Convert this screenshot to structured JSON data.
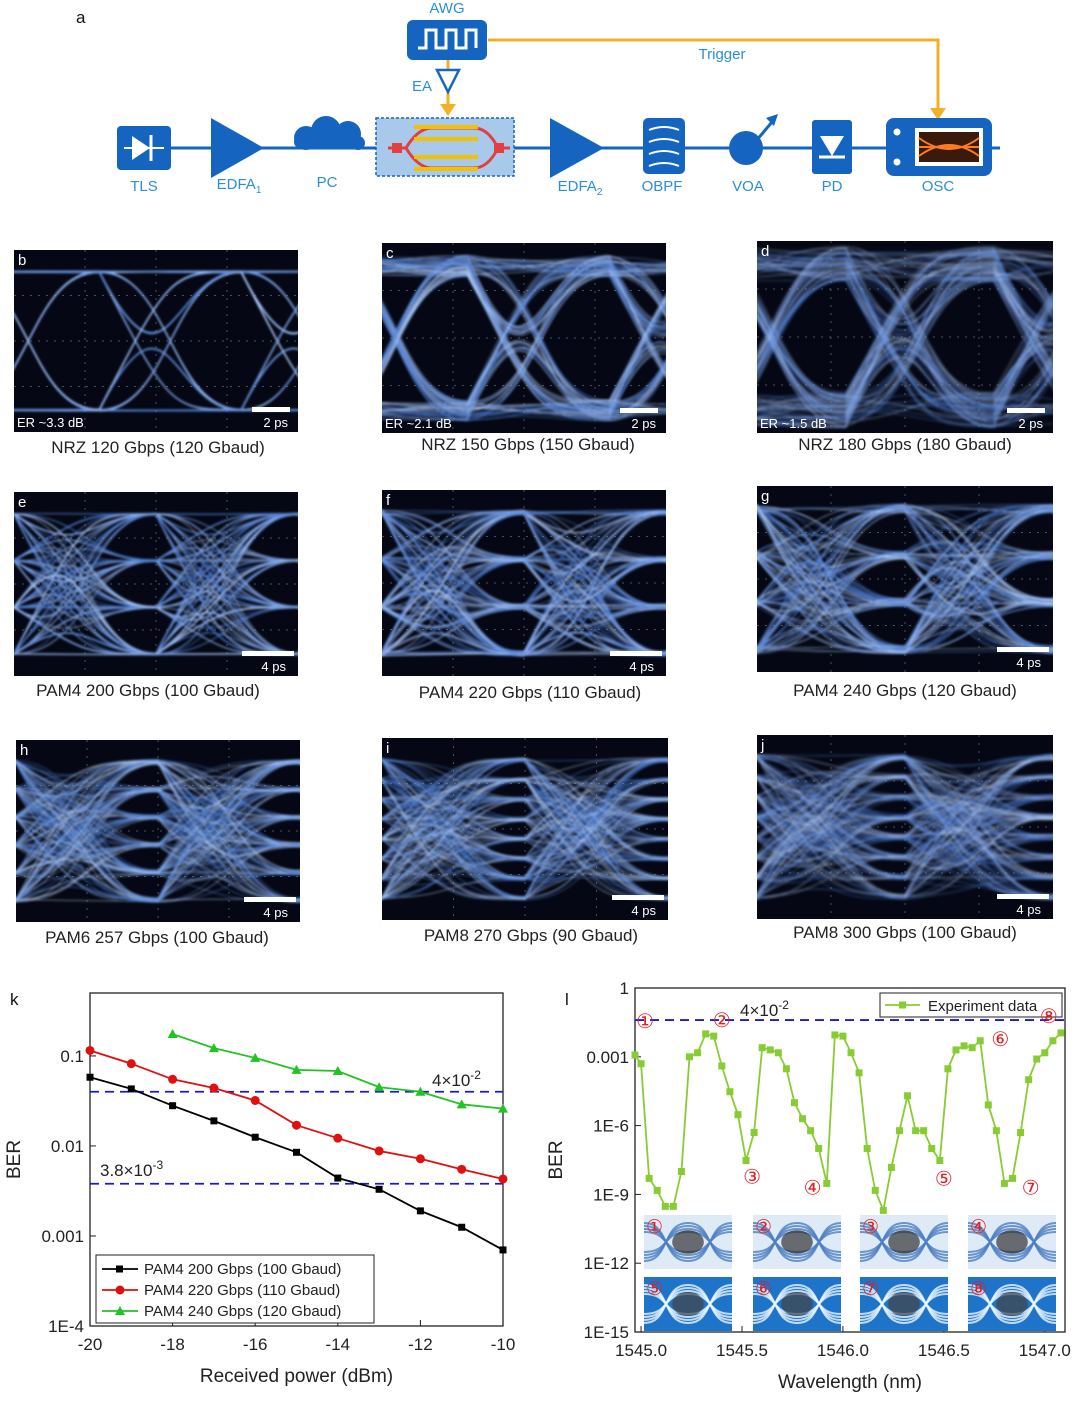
{
  "figure": {
    "schematic": {
      "panel": "a",
      "components": {
        "awg": "AWG",
        "ea": "EA",
        "trigger": "Trigger",
        "tls": "TLS",
        "edfa1": "EDFA",
        "edfa1_sub": "1",
        "pc": "PC",
        "edfa2": "EDFA",
        "edfa2_sub": "2",
        "obpf": "OBPF",
        "voa": "VOA",
        "pd": "PD",
        "osc": "OSC"
      },
      "colors": {
        "device": "#1565c0",
        "signal": "#f2b025",
        "label": "#2a8fd8"
      }
    },
    "eyes": [
      {
        "panel": "b",
        "er": "ER ~3.3 dB",
        "scale": "2 ps",
        "caption": "NRZ 120 Gbps (120 Gbaud)",
        "levels": 2,
        "quality": 1.0
      },
      {
        "panel": "c",
        "er": "ER ~2.1 dB",
        "scale": "2 ps",
        "caption": "NRZ 150 Gbps (150 Gbaud)",
        "levels": 2,
        "quality": 0.7
      },
      {
        "panel": "d",
        "er": "ER ~1.5 dB",
        "scale": "2 ps",
        "caption": "NRZ 180 Gbps (180 Gbaud)",
        "levels": 2,
        "quality": 0.5
      },
      {
        "panel": "e",
        "er": "",
        "scale": "4 ps",
        "caption": "PAM4 200 Gbps (100 Gbaud)",
        "levels": 4,
        "quality": 1.0
      },
      {
        "panel": "f",
        "er": "",
        "scale": "4 ps",
        "caption": "PAM4 220 Gbps (110 Gbaud)",
        "levels": 4,
        "quality": 0.85
      },
      {
        "panel": "g",
        "er": "",
        "scale": "4 ps",
        "caption": "PAM4 240 Gbps (120 Gbaud)",
        "levels": 4,
        "quality": 0.7
      },
      {
        "panel": "h",
        "er": "",
        "scale": "4 ps",
        "caption": "PAM6 257 Gbps (100 Gbaud)",
        "levels": 6,
        "quality": 0.8
      },
      {
        "panel": "i",
        "er": "",
        "scale": "4 ps",
        "caption": "PAM8 270 Gbps (90 Gbaud)",
        "levels": 8,
        "quality": 0.8
      },
      {
        "panel": "j",
        "er": "",
        "scale": "4 ps",
        "caption": "PAM8 300 Gbps (100 Gbaud)",
        "levels": 8,
        "quality": 0.65
      }
    ]
  },
  "chart_data": [
    {
      "panel": "k",
      "type": "line",
      "xlabel": "Received power (dBm)",
      "ylabel": "BER",
      "xlim": [
        -20,
        -10
      ],
      "ylim": [
        0.0001,
        0.5
      ],
      "log_y": true,
      "x_ticks": [
        -20,
        -18,
        -16,
        -14,
        -12,
        -10
      ],
      "y_ticks": [
        0.0001,
        0.001,
        0.01,
        0.1
      ],
      "y_tick_labels": [
        "1E-4",
        "0.001",
        "0.01",
        "0.1"
      ],
      "series": [
        {
          "name": "PAM4 200 Gbps (100 Gbaud)",
          "color": "#000000",
          "marker": "square",
          "x": [
            -20,
            -19,
            -18,
            -17,
            -16,
            -15,
            -14,
            -13,
            -12,
            -11,
            -10
          ],
          "y": [
            0.058,
            0.043,
            0.028,
            0.019,
            0.0125,
            0.0085,
            0.0044,
            0.0033,
            0.0019,
            0.00125,
            0.0007
          ]
        },
        {
          "name": "PAM4 220 Gbps (110 Gbaud)",
          "color": "#e01010",
          "marker": "circle",
          "x": [
            -20,
            -19,
            -18,
            -17,
            -16,
            -15,
            -14,
            -13,
            -12,
            -11,
            -10
          ],
          "y": [
            0.115,
            0.082,
            0.055,
            0.044,
            0.032,
            0.017,
            0.0122,
            0.0088,
            0.0072,
            0.0055,
            0.0043
          ]
        },
        {
          "name": "PAM4 240 Gbps (120 Gbaud)",
          "color": "#22c322",
          "marker": "triangle",
          "x": [
            -18,
            -17,
            -16,
            -15,
            -14,
            -13,
            -12,
            -11,
            -10
          ],
          "y": [
            0.175,
            0.122,
            0.095,
            0.07,
            0.068,
            0.045,
            0.04,
            0.029,
            0.026
          ]
        }
      ],
      "thresholds": [
        {
          "y": 0.04,
          "label_base": "4×10",
          "label_exp": "-2",
          "color": "#1a1acc"
        },
        {
          "y": 0.0038,
          "label_base": "3.8×10",
          "label_exp": "-3",
          "color": "#1a1acc"
        }
      ],
      "legend_position": "bottom-left"
    },
    {
      "panel": "l",
      "type": "line",
      "xlabel": "Wavelength (nm)",
      "ylabel": "BER",
      "xlim": [
        1544.97,
        1547.1
      ],
      "ylim": [
        1e-15,
        1
      ],
      "log_y": true,
      "x_ticks": [
        1545.0,
        1545.5,
        1546.0,
        1546.5,
        1547.0
      ],
      "x_tick_labels": [
        "1545.0",
        "1545.5",
        "1546.0",
        "1546.5",
        "1547.0"
      ],
      "y_ticks": [
        1,
        0.001,
        1e-06,
        1e-09,
        1e-12,
        1e-15
      ],
      "y_tick_labels": [
        "1",
        "0.001",
        "1E-6",
        "1E-9",
        "1E-12",
        "1E-15"
      ],
      "series": [
        {
          "name": "Experiment data",
          "color": "#88cc33",
          "marker": "square",
          "x": [
            1544.97,
            1545.0,
            1545.04,
            1545.08,
            1545.12,
            1545.16,
            1545.2,
            1545.24,
            1545.28,
            1545.32,
            1545.36,
            1545.4,
            1545.44,
            1545.48,
            1545.52,
            1545.56,
            1545.6,
            1545.64,
            1545.68,
            1545.72,
            1545.76,
            1545.8,
            1545.84,
            1545.88,
            1545.92,
            1545.96,
            1546.0,
            1546.04,
            1546.08,
            1546.12,
            1546.16,
            1546.2,
            1546.24,
            1546.28,
            1546.32,
            1546.36,
            1546.4,
            1546.44,
            1546.48,
            1546.52,
            1546.56,
            1546.6,
            1546.64,
            1546.68,
            1546.72,
            1546.76,
            1546.8,
            1546.84,
            1546.88,
            1546.92,
            1546.96,
            1547.0,
            1547.04,
            1547.08
          ],
          "y": [
            0.0012,
            0.0005,
            5e-09,
            1.5e-09,
            3e-10,
            3e-10,
            1e-08,
            0.001,
            0.0015,
            0.01,
            0.008,
            0.0004,
            3e-05,
            3e-06,
            3e-08,
            5e-07,
            0.0025,
            0.002,
            0.0015,
            0.0003,
            1e-05,
            2e-06,
            6e-07,
            1e-07,
            3e-09,
            0.009,
            0.008,
            0.0015,
            0.0002,
            1e-07,
            1.5e-09,
            2e-10,
            1.5e-08,
            6e-07,
            2e-05,
            6e-07,
            6e-07,
            1e-07,
            3e-08,
            0.0003,
            0.002,
            0.003,
            0.0025,
            0.005,
            8e-06,
            6e-07,
            3e-09,
            5e-09,
            5e-07,
            0.0001,
            0.0008,
            0.0015,
            0.005,
            0.011
          ]
        }
      ],
      "thresholds": [
        {
          "y": 0.04,
          "label_base": "4×10",
          "label_exp": "-2",
          "color": "#1a1acc"
        }
      ],
      "markers": [
        {
          "label": "①",
          "x": 1545.02,
          "y": 0.018
        },
        {
          "label": "②",
          "x": 1545.4,
          "y": 0.02
        },
        {
          "label": "③",
          "x": 1545.55,
          "y": 3e-09
        },
        {
          "label": "④",
          "x": 1545.85,
          "y": 1e-09
        },
        {
          "label": "⑤",
          "x": 1546.5,
          "y": 2.5e-09
        },
        {
          "label": "⑥",
          "x": 1546.78,
          "y": 0.003
        },
        {
          "label": "⑦",
          "x": 1546.93,
          "y": 1e-09
        },
        {
          "label": "⑧",
          "x": 1547.02,
          "y": 0.03
        }
      ],
      "inset_labels": [
        "①",
        "②",
        "③",
        "④",
        "⑤",
        "⑥",
        "⑦",
        "⑧"
      ],
      "legend_position": "top-right"
    }
  ]
}
